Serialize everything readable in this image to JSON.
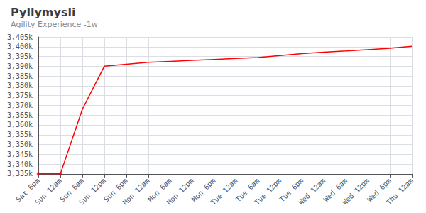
{
  "chart_data": {
    "type": "line",
    "title": "Pyllymysli",
    "subtitle": "Agility Experience -1w",
    "categories": [
      "Sat 6pm",
      "Sun 12am",
      "Sun 6am",
      "Sun 12pm",
      "Sun 6pm",
      "Mon 12am",
      "Mon 6am",
      "Mon 12pm",
      "Mon 6pm",
      "Tue 12am",
      "Tue 6am",
      "Tue 12pm",
      "Tue 6pm",
      "Wed 12am",
      "Wed 6am",
      "Wed 12pm",
      "Wed 6pm",
      "Thu 12am"
    ],
    "series": [
      {
        "color": "#ff0000",
        "values": [
          3335000,
          3335000,
          3368000,
          3390000,
          3391000,
          3392000,
          3392500,
          3393000,
          3393500,
          3394000,
          3394500,
          3395500,
          3396500,
          3397200,
          3397800,
          3398500,
          3399200,
          3400200
        ]
      },
      {
        "type": "scatter",
        "color": "#ff0000",
        "values": [
          3335000,
          3335000,
          null,
          null,
          null,
          null,
          null,
          null,
          null,
          null,
          null,
          null,
          null,
          null,
          null,
          null,
          null,
          null
        ]
      }
    ],
    "ylim": [
      3335000,
      3405000
    ],
    "yticks": [
      {
        "value": 3335000,
        "label": "3,335k"
      },
      {
        "value": 3340000,
        "label": "3,340k"
      },
      {
        "value": 3345000,
        "label": "3,345k"
      },
      {
        "value": 3350000,
        "label": "3,350k"
      },
      {
        "value": 3355000,
        "label": "3,355k"
      },
      {
        "value": 3360000,
        "label": "3,360k"
      },
      {
        "value": 3365000,
        "label": "3,365k"
      },
      {
        "value": 3370000,
        "label": "3,370k"
      },
      {
        "value": 3375000,
        "label": "3,375k"
      },
      {
        "value": 3380000,
        "label": "3,380k"
      },
      {
        "value": 3385000,
        "label": "3,385k"
      },
      {
        "value": 3390000,
        "label": "3,390k"
      },
      {
        "value": 3395000,
        "label": "3,395k"
      },
      {
        "value": 3400000,
        "label": "3,400k"
      },
      {
        "value": 3405000,
        "label": "3,405k"
      }
    ],
    "grid": true
  }
}
